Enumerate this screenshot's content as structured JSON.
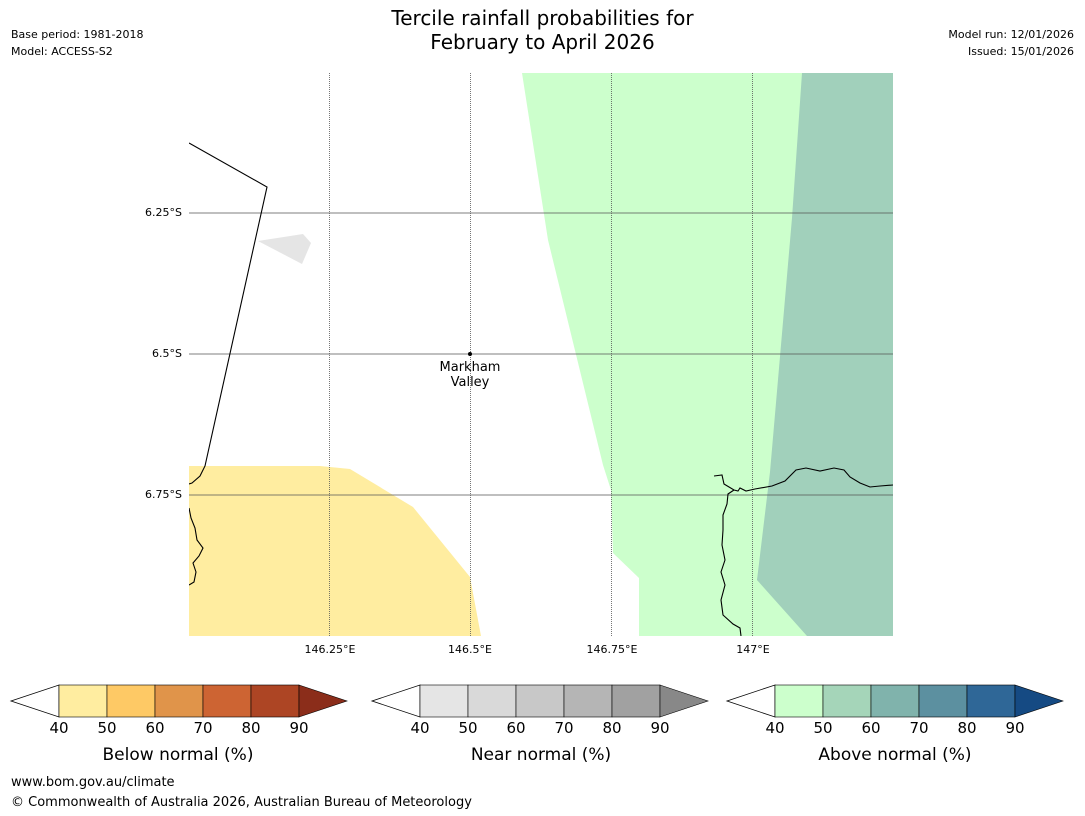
{
  "header": {
    "title_line1": "Tercile rainfall probabilities for",
    "title_line2": "February to April 2026",
    "base_period": "Base period: 1981-2018",
    "model": "Model: ACCESS-S2",
    "model_run": "Model run: 12/01/2026",
    "issued": "Issued: 15/01/2026"
  },
  "map": {
    "lat_labels": [
      "6.25°S",
      "6.5°S",
      "6.75°S"
    ],
    "lon_labels": [
      "146.25°E",
      "146.5°E",
      "146.75°E",
      "147°E"
    ],
    "place": {
      "name_line1": "Markham",
      "name_line2": "Valley"
    },
    "colors": {
      "below_40": "#ffeda0",
      "above_40": "#ccffcc",
      "above_50": "#a1d0bb",
      "near_40": "#e5e5e5",
      "coast": "#000000",
      "grid": "#555555"
    }
  },
  "colorbars": [
    {
      "title": "Below normal (%)",
      "ticks": [
        "40",
        "50",
        "60",
        "70",
        "80",
        "90"
      ],
      "colors": [
        "#ffeda0",
        "#fec965",
        "#e0944a",
        "#cd6433",
        "#ad4524",
        "#8b2d1a"
      ]
    },
    {
      "title": "Near normal (%)",
      "ticks": [
        "40",
        "50",
        "60",
        "70",
        "80",
        "90"
      ],
      "colors": [
        "#e5e5e5",
        "#d9d9d9",
        "#c8c8c8",
        "#b5b5b5",
        "#a1a1a1",
        "#888888"
      ]
    },
    {
      "title": "Above normal (%)",
      "ticks": [
        "40",
        "50",
        "60",
        "70",
        "80",
        "90"
      ],
      "colors": [
        "#ccffcc",
        "#a5d5b9",
        "#80b3ac",
        "#5c90a0",
        "#2f6797",
        "#154a83"
      ]
    }
  ],
  "footer": {
    "url": "www.bom.gov.au/climate",
    "copyright": "© Commonwealth of Australia 2026, Australian Bureau of Meteorology"
  }
}
